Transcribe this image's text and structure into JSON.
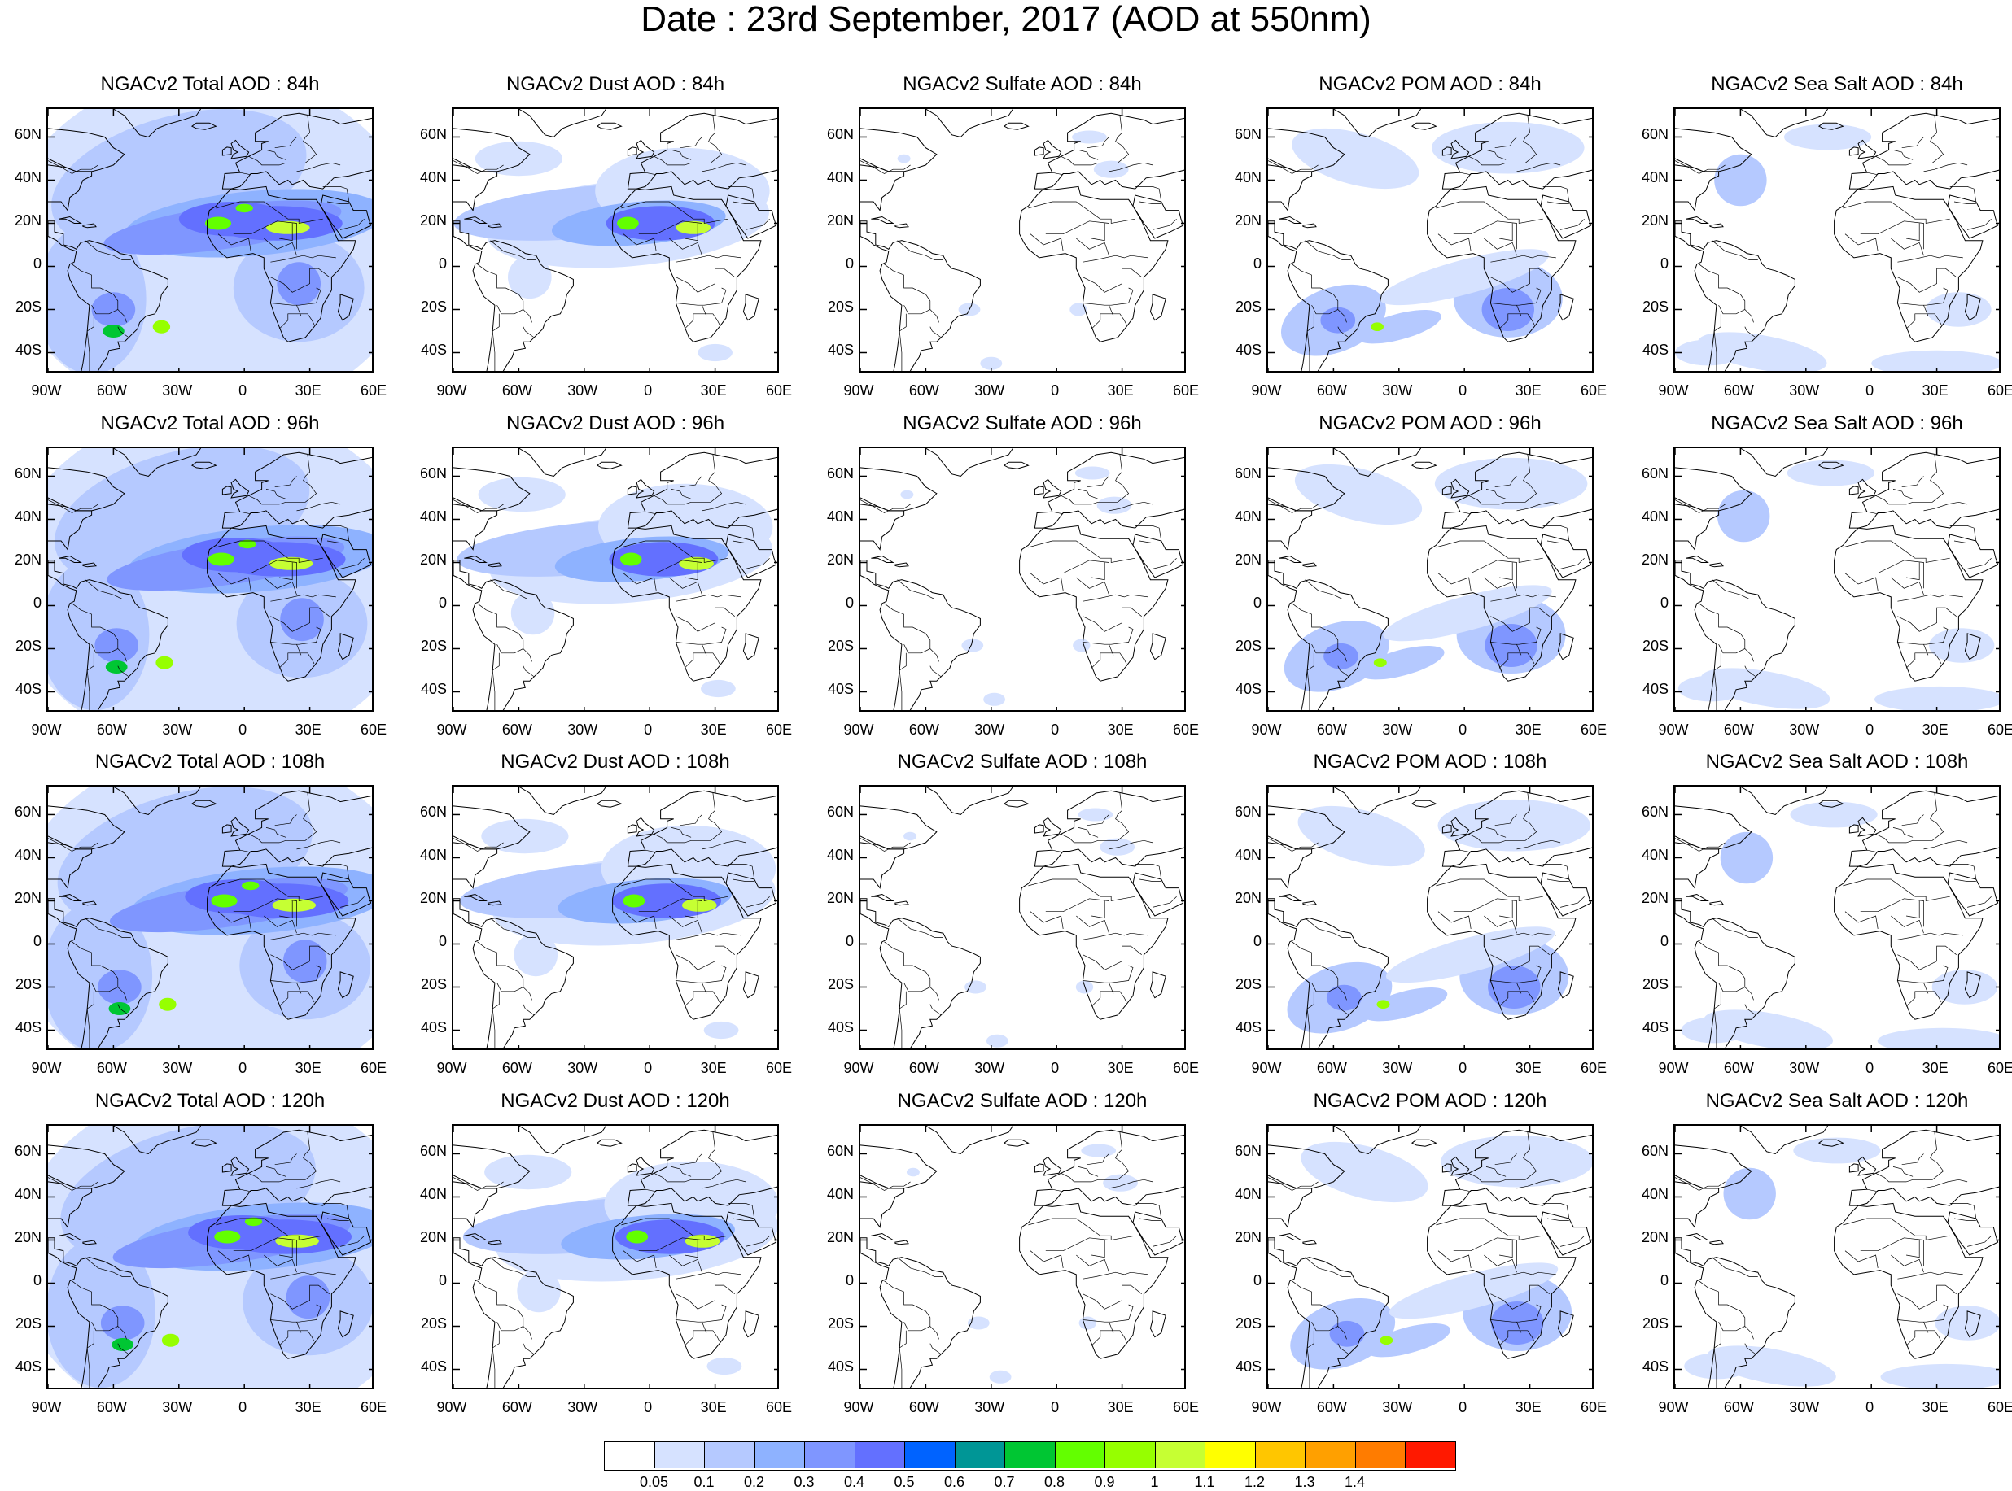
{
  "title": "Date : 23rd September, 2017 (AOD at 550nm)",
  "panels": [
    [
      {
        "title": "NGACv2 Total AOD : 84h",
        "kind": "total"
      },
      {
        "title": "NGACv2 Dust AOD : 84h",
        "kind": "dust"
      },
      {
        "title": "NGACv2 Sulfate AOD : 84h",
        "kind": "sulfate"
      },
      {
        "title": "NGACv2 POM AOD : 84h",
        "kind": "pom"
      },
      {
        "title": "NGACv2 Sea Salt AOD : 84h",
        "kind": "seasalt"
      }
    ],
    [
      {
        "title": "NGACv2 Total AOD : 96h",
        "kind": "total"
      },
      {
        "title": "NGACv2 Dust AOD : 96h",
        "kind": "dust"
      },
      {
        "title": "NGACv2 Sulfate AOD : 96h",
        "kind": "sulfate"
      },
      {
        "title": "NGACv2 POM AOD : 96h",
        "kind": "pom"
      },
      {
        "title": "NGACv2 Sea Salt AOD : 96h",
        "kind": "seasalt"
      }
    ],
    [
      {
        "title": "NGACv2 Total AOD : 108h",
        "kind": "total"
      },
      {
        "title": "NGACv2 Dust AOD : 108h",
        "kind": "dust"
      },
      {
        "title": "NGACv2 Sulfate AOD : 108h",
        "kind": "sulfate"
      },
      {
        "title": "NGACv2 POM AOD : 108h",
        "kind": "pom"
      },
      {
        "title": "NGACv2 Sea Salt AOD : 108h",
        "kind": "seasalt"
      }
    ],
    [
      {
        "title": "NGACv2 Total AOD : 120h",
        "kind": "total"
      },
      {
        "title": "NGACv2 Dust AOD : 120h",
        "kind": "dust"
      },
      {
        "title": "NGACv2 Sulfate AOD : 120h",
        "kind": "sulfate"
      },
      {
        "title": "NGACv2 POM AOD : 120h",
        "kind": "pom"
      },
      {
        "title": "NGACv2 Sea Salt  AOD : 120h",
        "kind": "seasalt"
      }
    ]
  ],
  "lat_labels": [
    "60N",
    "40N",
    "20N",
    "0",
    "20S",
    "40S"
  ],
  "lon_labels": [
    "90W",
    "60W",
    "30W",
    "0",
    "30E",
    "60E"
  ],
  "colorbar": {
    "labels": [
      "0.05",
      "0.1",
      "0.2",
      "0.3",
      "0.4",
      "0.5",
      "0.6",
      "0.7",
      "0.8",
      "0.9",
      "1",
      "1.1",
      "1.2",
      "1.3",
      "1.4"
    ],
    "colors": [
      "#ffffff",
      "#d6e2ff",
      "#b5c9ff",
      "#8eb2ff",
      "#7f96ff",
      "#6370ff",
      "#0063ff",
      "#009696",
      "#00c633",
      "#63ff00",
      "#96ff00",
      "#c6ff33",
      "#ffff00",
      "#ffc600",
      "#ffa000",
      "#ff7c00",
      "#ff1900"
    ]
  }
}
